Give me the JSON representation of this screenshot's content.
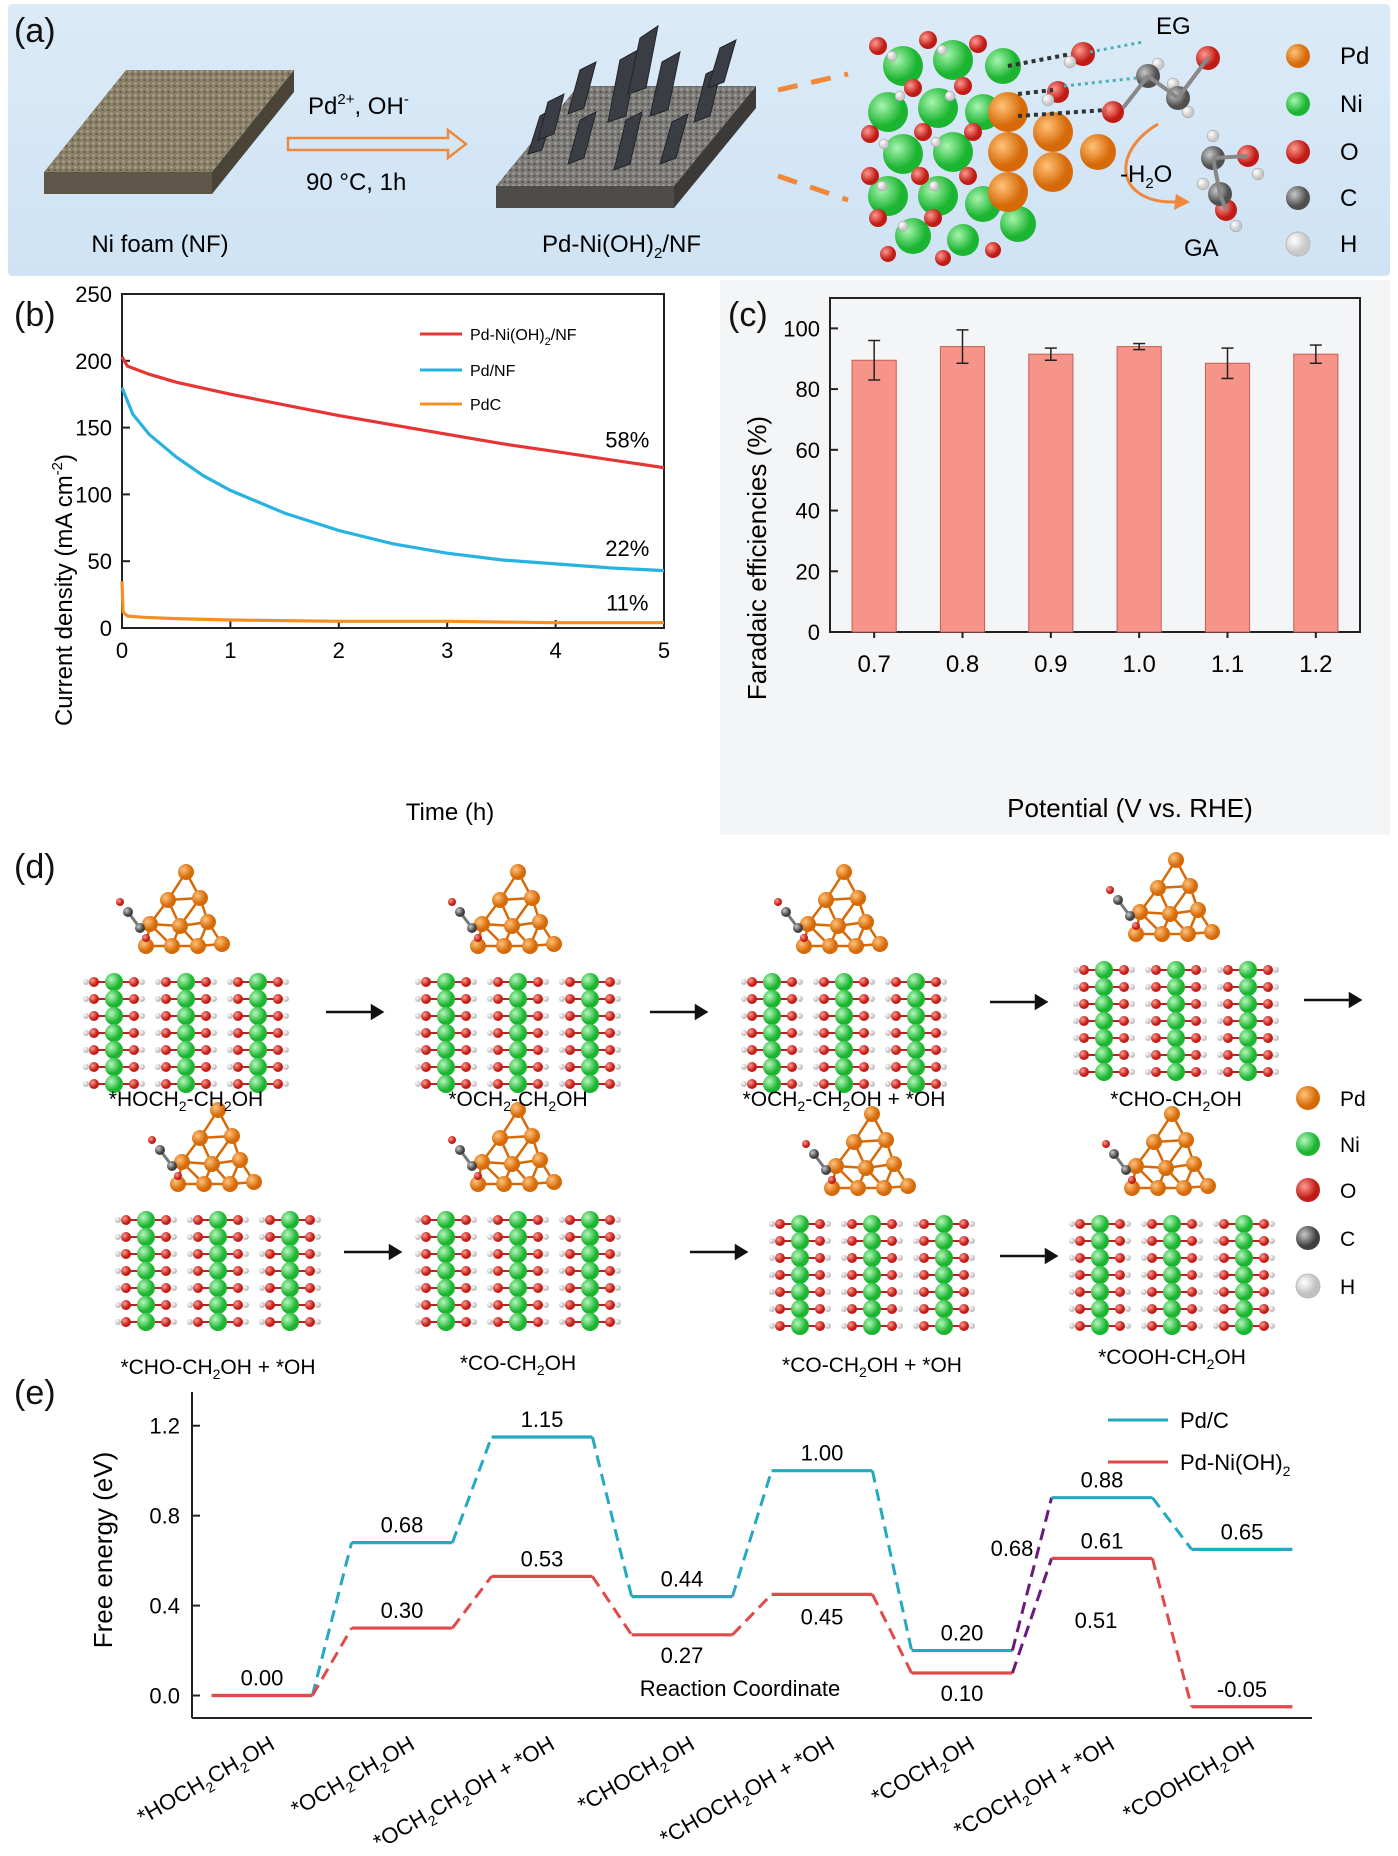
{
  "panel_labels": {
    "a": "(a)",
    "b": "(b)",
    "c": "(c)",
    "d": "(d)",
    "e": "(e)"
  },
  "panel_a": {
    "ni_foam_label": "Ni foam (NF)",
    "arrow_top": "Pd",
    "arrow_top_sup": "2+",
    "arrow_top_tail": ", OH",
    "arrow_top_sup2": "-",
    "arrow_bottom": "90 °C, 1h",
    "product_label_pre": "Pd-Ni(OH)",
    "product_label_sub": "2",
    "product_label_post": "/NF",
    "eg_label": "EG",
    "water_label_pre": "-H",
    "water_label_sub": "2",
    "water_label_post": "O",
    "ga_label": "GA",
    "legend": [
      {
        "name": "Pd",
        "color": "#f08a1c"
      },
      {
        "name": "Ni",
        "color": "#35d24a"
      },
      {
        "name": "O",
        "color": "#e03a32"
      },
      {
        "name": "C",
        "color": "#808080"
      },
      {
        "name": "H",
        "color": "#ffffff"
      }
    ]
  },
  "panel_b_text": {
    "ylabel_pre": "Current density (mA cm",
    "ylabel_sup": "-2",
    "ylabel_post": ")",
    "xlabel": "Time (h)",
    "legend_pd_ni_pre": "Pd-Ni(OH)",
    "legend_pd_ni_sub": "2",
    "legend_pd_ni_post": "/NF",
    "legend_pd_nf": "Pd/NF",
    "legend_pdc": "PdC"
  },
  "panel_d": {
    "states": [
      {
        "pre": "*HOCH",
        "sub": "2",
        "post": "-CH",
        "sub2": "2",
        "tail": "OH"
      },
      {
        "pre": "*OCH",
        "sub": "2",
        "post": "-CH",
        "sub2": "2",
        "tail": "OH"
      },
      {
        "pre": "*OCH",
        "sub": "2",
        "post": "-CH",
        "sub2": "2",
        "tail": "OH + *OH"
      },
      {
        "pre": "*CHO-CH",
        "sub": "2",
        "post": "OH",
        "sub2": "",
        "tail": ""
      },
      {
        "pre": "*CHO-CH",
        "sub": "2",
        "post": "OH + *OH",
        "sub2": "",
        "tail": ""
      },
      {
        "pre": "*CO-CH",
        "sub": "2",
        "post": "OH",
        "sub2": "",
        "tail": ""
      },
      {
        "pre": "*CO-CH",
        "sub": "2",
        "post": "OH + *OH",
        "sub2": "",
        "tail": ""
      },
      {
        "pre": "*COOH-CH",
        "sub": "2",
        "post": "OH",
        "sub2": "",
        "tail": ""
      }
    ],
    "legend": [
      {
        "name": "Pd",
        "color": "#f08a1c"
      },
      {
        "name": "Ni",
        "color": "#35d24a"
      },
      {
        "name": "O",
        "color": "#e03a32"
      },
      {
        "name": "C",
        "color": "#707070"
      },
      {
        "name": "H",
        "color": "#ffffff"
      }
    ]
  },
  "chart_data": [
    {
      "type": "line",
      "title": "",
      "xlabel": "Time (h)",
      "ylabel": "Current density (mA cm-2)",
      "xlim": [
        0,
        5
      ],
      "ylim": [
        0,
        250
      ],
      "xticks": [
        0,
        1,
        2,
        3,
        4,
        5
      ],
      "yticks": [
        0,
        50,
        100,
        150,
        200,
        250
      ],
      "legend_position": "top-right",
      "series": [
        {
          "name": "Pd-Ni(OH)2/NF",
          "color": "#e63535",
          "x": [
            0,
            0.05,
            0.25,
            0.5,
            1,
            1.5,
            2,
            2.5,
            3,
            3.5,
            4,
            4.5,
            5
          ],
          "y": [
            203,
            196,
            190,
            184,
            175,
            167,
            159,
            152,
            145,
            138,
            132,
            126,
            120
          ]
        },
        {
          "name": "Pd/NF",
          "color": "#27b2e0",
          "x": [
            0,
            0.1,
            0.25,
            0.5,
            0.75,
            1,
            1.5,
            2,
            2.5,
            3,
            3.5,
            4,
            4.5,
            5
          ],
          "y": [
            180,
            160,
            145,
            128,
            114,
            103,
            86,
            73,
            63,
            56,
            51,
            48,
            45,
            43
          ]
        },
        {
          "name": "PdC",
          "color": "#f48f25",
          "x": [
            0,
            0.01,
            0.05,
            0.2,
            0.5,
            1,
            2,
            3,
            4,
            5
          ],
          "y": [
            35,
            12,
            9,
            8,
            7,
            6,
            5,
            5,
            4,
            4
          ]
        }
      ],
      "annotations": [
        {
          "text": "58%",
          "x": 4.2,
          "y": 135
        },
        {
          "text": "22%",
          "x": 4.2,
          "y": 54
        },
        {
          "text": "11%",
          "x": 4.2,
          "y": 13
        }
      ]
    },
    {
      "type": "bar",
      "title": "",
      "xlabel": "Potential (V vs. RHE)",
      "ylabel": "Faradaic efficiencies (%)",
      "categories": [
        "0.7",
        "0.8",
        "0.9",
        "1.0",
        "1.1",
        "1.2"
      ],
      "values": [
        89.5,
        94,
        91.5,
        94,
        88.5,
        91.5
      ],
      "errors": [
        6.5,
        5.5,
        2,
        1,
        5,
        3
      ],
      "ylim": [
        0,
        110
      ],
      "yticks": [
        0,
        20,
        40,
        60,
        80,
        100
      ],
      "bar_color": "#f79489"
    },
    {
      "type": "line",
      "title": "",
      "xlabel": "Reaction Coordinate",
      "ylabel": "Free energy (eV)",
      "ylim": [
        -0.1,
        1.35
      ],
      "yticks": [
        0.0,
        0.4,
        0.8,
        1.2
      ],
      "categories": [
        "*HOCH2CH2OH",
        "*OCH2CH2OH",
        "*OCH2CH2OH + *OH",
        "*CHOCH2OH",
        "*CHOCH2OH + *OH",
        "*COCH2OH",
        "*COCH2OH + *OH",
        "*COOHCH2OH"
      ],
      "legend_position": "top-right",
      "series": [
        {
          "name": "Pd/C",
          "color": "#23a9c0",
          "values": [
            0.0,
            0.68,
            1.15,
            0.44,
            1.0,
            0.2,
            0.88,
            0.65
          ]
        },
        {
          "name": "Pd-Ni(OH)2",
          "color": "#e14a4a",
          "values": [
            0.0,
            0.3,
            0.53,
            0.27,
            0.45,
            0.1,
            0.61,
            -0.05
          ]
        }
      ],
      "value_labels_pdc": [
        "",
        "0.68",
        "1.15",
        "0.44",
        "1.00",
        "0.20",
        "0.88",
        "0.65"
      ],
      "value_labels_pdni": [
        "0.00",
        "0.30",
        "0.53",
        "0.27",
        "0.45",
        "0.10",
        "0.61",
        "-0.05"
      ],
      "barrier_labels": [
        {
          "text": "0.68"
        },
        {
          "text": "0.51"
        }
      ],
      "barrier_color": "#6a1a7a",
      "legend_pdc": "Pd/C",
      "legend_pdni_pre": "Pd-Ni(OH)",
      "legend_pdni_sub": "2",
      "xlabel_state_labels": [
        {
          "pre": "*HOCH",
          "s1": "2",
          "mid": "CH",
          "s2": "2",
          "post": "OH"
        },
        {
          "pre": "*OCH",
          "s1": "2",
          "mid": "CH",
          "s2": "2",
          "post": "OH"
        },
        {
          "pre": "*OCH",
          "s1": "2",
          "mid": "CH",
          "s2": "2",
          "post": "OH + *OH"
        },
        {
          "pre": "*CHOCH",
          "s1": "2",
          "mid": "OH",
          "s2": "",
          "post": ""
        },
        {
          "pre": "*CHOCH",
          "s1": "2",
          "mid": "OH + *OH",
          "s2": "",
          "post": ""
        },
        {
          "pre": "*COCH",
          "s1": "2",
          "mid": "OH",
          "s2": "",
          "post": ""
        },
        {
          "pre": "*COCH",
          "s1": "2",
          "mid": "OH + *OH",
          "s2": "",
          "post": ""
        },
        {
          "pre": "*COOHCH",
          "s1": "2",
          "mid": "OH",
          "s2": "",
          "post": ""
        }
      ]
    }
  ]
}
